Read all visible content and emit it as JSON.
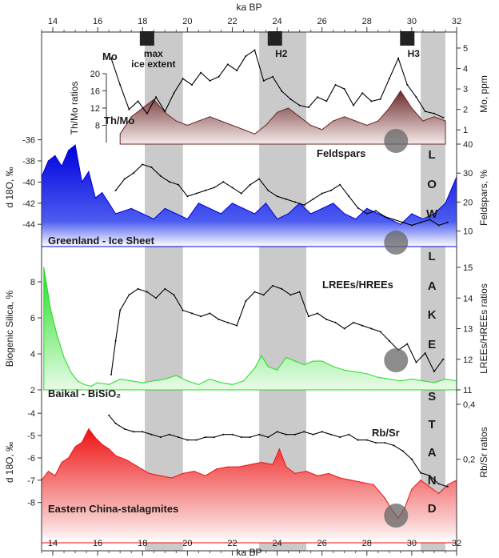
{
  "chart_data": {
    "type": "area",
    "x_axis": {
      "label": "ka BP",
      "range": [
        13.5,
        32
      ],
      "ticks": [
        14,
        16,
        18,
        20,
        22,
        24,
        26,
        28,
        30,
        32
      ],
      "tick_labels": [
        "14",
        "16",
        "18",
        "20",
        "22",
        "24",
        "26",
        "28",
        "30",
        "32"
      ]
    },
    "events": [
      {
        "label": "max ice extent",
        "label_lines": [
          "max",
          "ice extent"
        ],
        "marker_x": 18.2,
        "band": [
          18.1,
          19.8
        ]
      },
      {
        "label": "H2",
        "label_lines": [
          "H2"
        ],
        "marker_x": 23.9,
        "band": [
          23.2,
          25.3
        ]
      },
      {
        "label": "H3",
        "label_lines": [
          "H3"
        ],
        "marker_x": 29.8,
        "band": [
          30.4,
          31.5
        ]
      }
    ],
    "stand_letters": [
      "L",
      "O",
      "W",
      "L",
      "A",
      "K",
      "E",
      "S",
      "T",
      "A",
      "N",
      "D"
    ],
    "stand_text": "LOW LAKE STAND",
    "anomaly_markers_x": [
      29.3
    ],
    "panels": [
      {
        "id": "mo",
        "series": [
          {
            "name": "Mo",
            "color": "#000000",
            "style": "line",
            "axis": "right",
            "axis_label": "Mo, ppm",
            "ylim": [
              0.5,
              5
            ],
            "x": [
              16.6,
              17.0,
              17.4,
              17.8,
              18.2,
              18.6,
              19.0,
              19.4,
              19.8,
              20.2,
              20.6,
              21.0,
              21.4,
              21.8,
              22.2,
              22.6,
              23.0,
              23.4,
              23.8,
              24.2,
              24.6,
              25.0,
              25.4,
              25.8,
              26.2,
              26.6,
              27.0,
              27.4,
              27.8,
              28.2,
              28.6,
              29.0,
              29.4,
              29.8,
              30.2,
              30.6,
              31.0,
              31.4
            ],
            "values": [
              4.5,
              3.2,
              2.0,
              2.4,
              1.8,
              2.6,
              1.9,
              2.8,
              3.5,
              3.2,
              3.8,
              3.4,
              3.6,
              4.2,
              3.9,
              4.6,
              4.9,
              3.4,
              3.6,
              2.9,
              2.5,
              2.2,
              2.1,
              2.6,
              2.4,
              3.2,
              3.0,
              2.2,
              2.8,
              2.4,
              2.5,
              3.5,
              4.5,
              3.2,
              2.6,
              1.9,
              1.8,
              1.6
            ],
            "ticks": [
              1,
              2,
              3,
              4,
              5
            ]
          },
          {
            "name": "Th/Mo",
            "color": "#6b2a2a",
            "style": "area",
            "axis": "left",
            "axis_label": "Th/Mo ratios",
            "ylim": [
              4,
              20
            ],
            "x": [
              17.0,
              17.5,
              18.0,
              18.5,
              19.0,
              19.5,
              20.0,
              20.5,
              21.0,
              21.5,
              22.0,
              22.5,
              23.0,
              23.5,
              24.0,
              24.5,
              25.0,
              25.5,
              26.0,
              26.5,
              27.0,
              27.5,
              28.0,
              28.5,
              29.0,
              29.5,
              30.0,
              30.5,
              31.0,
              31.5
            ],
            "values": [
              6,
              10,
              12,
              14,
              11,
              9,
              8,
              9,
              10,
              9,
              8,
              7,
              6,
              8,
              11,
              12,
              10,
              8,
              7,
              9,
              10,
              9,
              8,
              9,
              12,
              16,
              12,
              9,
              10,
              9
            ],
            "ticks": [
              8,
              12,
              16,
              20
            ]
          }
        ]
      },
      {
        "id": "greenland",
        "label": "Greenland - Ice Sheet",
        "series": [
          {
            "name": "Greenland d18O",
            "color": "#0000dd",
            "style": "area",
            "axis": "left",
            "axis_label": "d 18O, ‰",
            "ylim": [
              -45.5,
              -35.5
            ],
            "x": [
              13.5,
              13.8,
              14.1,
              14.4,
              14.7,
              15.0,
              15.3,
              15.6,
              15.9,
              16.2,
              16.5,
              16.8,
              17.5,
              18.0,
              18.5,
              19.0,
              19.5,
              20.0,
              20.5,
              21.0,
              21.5,
              22.0,
              22.5,
              23.0,
              23.5,
              24.0,
              24.5,
              25.0,
              25.5,
              26.0,
              26.5,
              27.0,
              27.5,
              28.0,
              28.5,
              29.0,
              29.5,
              30.0,
              30.5,
              31.0,
              31.5,
              32.0
            ],
            "values": [
              -39.5,
              -38.0,
              -37.5,
              -38.5,
              -37.0,
              -36.5,
              -40.0,
              -39.0,
              -41.5,
              -41.0,
              -42.0,
              -43.0,
              -42.5,
              -43.0,
              -43.5,
              -42.5,
              -43.0,
              -43.5,
              -42.0,
              -42.5,
              -43.0,
              -42.0,
              -42.5,
              -43.0,
              -42.0,
              -43.5,
              -43.0,
              -42.0,
              -43.0,
              -42.5,
              -42.0,
              -43.0,
              -43.5,
              -42.5,
              -43.0,
              -43.5,
              -44.0,
              -43.0,
              -43.5,
              -43.0,
              -42.0,
              -39.5
            ],
            "ticks": [
              -44,
              -42,
              -40,
              -38,
              -36
            ]
          },
          {
            "name": "Feldspars",
            "color": "#000000",
            "style": "line",
            "axis": "right",
            "axis_label": "Feldspars, %",
            "ylim": [
              3,
              40
            ],
            "x": [
              16.8,
              17.2,
              17.6,
              18.0,
              18.4,
              18.8,
              19.2,
              19.6,
              20.0,
              20.4,
              20.8,
              21.2,
              21.6,
              22.0,
              22.4,
              22.8,
              23.2,
              23.6,
              24.0,
              24.4,
              24.8,
              25.2,
              25.6,
              26.0,
              26.4,
              26.8,
              27.2,
              27.6,
              28.0,
              28.4,
              28.8,
              29.2,
              29.6,
              30.0,
              30.4,
              30.8,
              31.2,
              31.6
            ],
            "values": [
              24,
              28,
              30,
              33,
              32,
              29,
              27,
              26,
              22,
              23,
              24,
              25,
              27,
              25,
              23,
              26,
              28,
              24,
              22,
              21,
              20,
              19,
              21,
              23,
              24,
              26,
              22,
              18,
              16,
              17,
              15,
              14,
              13,
              12,
              13,
              14,
              12,
              13
            ],
            "ticks": [
              10,
              20,
              30,
              40
            ]
          }
        ]
      },
      {
        "id": "baikal",
        "label": "Baikal - BiSiO₂",
        "series": [
          {
            "name": "Biogenic Silica",
            "color": "#22dd22",
            "style": "area",
            "axis": "left",
            "axis_label": "Biogenic Silica, %",
            "ylim": [
              2,
              8.8
            ],
            "x": [
              13.6,
              13.9,
              14.2,
              14.5,
              14.8,
              15.1,
              15.4,
              15.7,
              16.0,
              16.5,
              17.0,
              17.5,
              18.0,
              18.5,
              19.0,
              19.5,
              20.0,
              20.5,
              21.0,
              21.5,
              22.0,
              22.5,
              23.0,
              23.3,
              23.6,
              24.0,
              24.4,
              24.8,
              25.2,
              25.6,
              26.0,
              26.5,
              27.0,
              27.5,
              28.0,
              28.5,
              29.0,
              29.5,
              30.0,
              30.5,
              31.0,
              31.5,
              32.0
            ],
            "values": [
              8.8,
              6.5,
              5.0,
              3.8,
              3.0,
              2.5,
              2.3,
              2.2,
              2.4,
              2.3,
              2.6,
              2.5,
              2.4,
              2.5,
              2.6,
              2.8,
              2.5,
              2.3,
              2.6,
              2.4,
              2.3,
              2.5,
              3.2,
              3.9,
              3.3,
              3.1,
              3.8,
              3.6,
              3.4,
              3.6,
              3.6,
              3.3,
              3.1,
              3.0,
              2.9,
              2.7,
              2.6,
              2.5,
              2.6,
              2.5,
              2.4,
              2.6,
              2.5
            ],
            "ticks": [
              2,
              4,
              6,
              8
            ]
          },
          {
            "name": "LREEs/HREEs",
            "color": "#000000",
            "style": "line",
            "axis": "right",
            "axis_label": "LREEs/HREEs ratios",
            "ylim": [
              11,
              15
            ],
            "x": [
              16.6,
              16.8,
              17.0,
              17.4,
              17.8,
              18.2,
              18.6,
              19.0,
              19.4,
              19.8,
              20.2,
              20.6,
              21.0,
              21.4,
              21.8,
              22.2,
              22.6,
              23.0,
              23.4,
              23.8,
              24.2,
              24.6,
              25.0,
              25.4,
              25.8,
              26.2,
              26.6,
              27.0,
              27.4,
              27.8,
              28.2,
              28.6,
              29.0,
              29.4,
              29.8,
              30.2,
              30.6,
              31.0,
              31.4
            ],
            "values": [
              11.5,
              12.6,
              13.6,
              14.1,
              14.3,
              14.2,
              14.0,
              14.3,
              14.1,
              13.6,
              13.5,
              13.4,
              13.5,
              13.3,
              13.2,
              13.1,
              13.9,
              14.2,
              14.1,
              14.4,
              14.3,
              14.1,
              14.2,
              13.4,
              13.5,
              13.3,
              13.2,
              13.0,
              13.2,
              13.1,
              13.0,
              12.9,
              12.6,
              12.3,
              12.5,
              11.9,
              12.2,
              11.6,
              12.0
            ],
            "ticks": [
              11,
              12,
              13,
              14,
              15
            ]
          }
        ]
      },
      {
        "id": "china",
        "label": "Eastern China-stalagmites",
        "series": [
          {
            "name": "Eastern China d18O",
            "color": "#ee1111",
            "style": "area",
            "axis": "left",
            "axis_label": "d 18O, ‰",
            "ylim": [
              -8.8,
              -3.6
            ],
            "x": [
              13.5,
              13.8,
              14.1,
              14.4,
              14.7,
              15.0,
              15.3,
              15.6,
              15.9,
              16.2,
              16.5,
              16.8,
              17.3,
              17.8,
              18.3,
              18.8,
              19.3,
              19.8,
              20.3,
              20.8,
              21.3,
              21.8,
              22.3,
              22.8,
              23.3,
              23.8,
              24.1,
              24.4,
              24.8,
              25.3,
              25.8,
              26.3,
              26.8,
              27.3,
              27.8,
              28.3,
              28.8,
              29.1,
              29.4,
              29.7,
              30.0,
              30.4,
              30.8,
              31.2,
              31.6,
              32.0
            ],
            "values": [
              -7.0,
              -6.6,
              -6.8,
              -6.2,
              -6.0,
              -5.5,
              -5.3,
              -4.7,
              -5.1,
              -5.4,
              -5.6,
              -5.9,
              -6.1,
              -6.4,
              -6.7,
              -6.8,
              -6.9,
              -6.7,
              -6.6,
              -6.8,
              -6.5,
              -6.4,
              -6.4,
              -6.3,
              -6.2,
              -6.3,
              -5.6,
              -6.4,
              -6.7,
              -6.6,
              -6.8,
              -6.7,
              -6.9,
              -7.0,
              -7.1,
              -7.2,
              -7.8,
              -8.3,
              -8.7,
              -8.2,
              -7.4,
              -7.0,
              -7.3,
              -7.6,
              -7.2,
              -7.0
            ],
            "ticks": [
              -8,
              -7,
              -6,
              -5,
              -4
            ]
          },
          {
            "name": "Rb/Sr",
            "color": "#000000",
            "style": "line",
            "axis": "right",
            "axis_label": "Rb/Sr ratios",
            "ylim": [
              0.05,
              0.4
            ],
            "x": [
              16.5,
              16.8,
              17.2,
              17.6,
              18.0,
              18.4,
              18.8,
              19.2,
              19.6,
              20.0,
              20.4,
              20.8,
              21.2,
              21.6,
              22.0,
              22.4,
              22.8,
              23.2,
              23.6,
              24.0,
              24.4,
              24.8,
              25.2,
              25.6,
              26.0,
              26.4,
              26.8,
              27.2,
              27.6,
              28.0,
              28.4,
              28.8,
              29.2,
              29.6,
              30.0,
              30.4,
              30.8,
              31.2,
              31.6
            ],
            "values": [
              0.36,
              0.33,
              0.31,
              0.3,
              0.3,
              0.29,
              0.28,
              0.29,
              0.28,
              0.27,
              0.27,
              0.28,
              0.28,
              0.29,
              0.29,
              0.28,
              0.28,
              0.29,
              0.28,
              0.3,
              0.29,
              0.29,
              0.3,
              0.29,
              0.3,
              0.29,
              0.28,
              0.29,
              0.27,
              0.27,
              0.26,
              0.26,
              0.25,
              0.23,
              0.2,
              0.15,
              0.14,
              0.11,
              0.1
            ],
            "ticks": [
              0.2,
              0.4
            ],
            "tick_labels": [
              "0,2",
              "0,4"
            ]
          }
        ]
      }
    ]
  }
}
